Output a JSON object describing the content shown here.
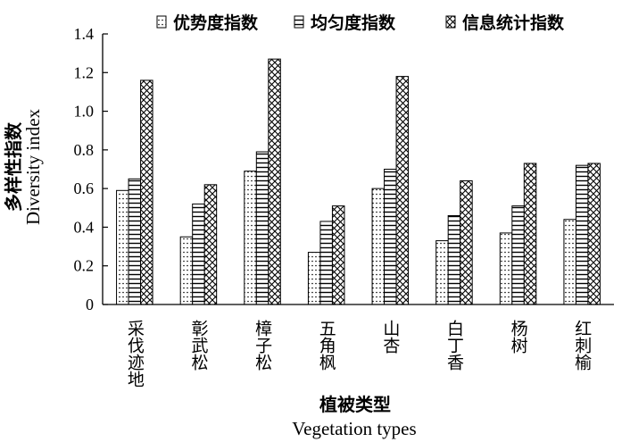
{
  "chart_data": {
    "type": "bar",
    "categories": [
      "采伐迹地",
      "彰武松",
      "樟子松",
      "五角枫",
      "山杏",
      "白丁香",
      "杨树",
      "红刺榆"
    ],
    "series": [
      {
        "name": "优势度指数",
        "pattern": "dots",
        "values": [
          0.59,
          0.35,
          0.69,
          0.27,
          0.6,
          0.33,
          0.37,
          0.44
        ]
      },
      {
        "name": "均匀度指数",
        "pattern": "horizontal-lines",
        "values": [
          0.65,
          0.52,
          0.79,
          0.43,
          0.7,
          0.46,
          0.51,
          0.72
        ]
      },
      {
        "name": "信息统计指数",
        "pattern": "crosshatch",
        "values": [
          1.16,
          0.62,
          1.27,
          0.51,
          1.18,
          0.64,
          0.73,
          0.73
        ]
      }
    ],
    "ylim": [
      0,
      1.4
    ],
    "yticks": [
      "0",
      "0.2",
      "0.4",
      "0.6",
      "0.8",
      "1.0",
      "1.2",
      "1.4"
    ],
    "ylabel_cn": "多样性指数",
    "ylabel_en": "Diversity index",
    "xlabel_cn": "植被类型",
    "xlabel_en": "Vegetation types",
    "legend_position": "top",
    "grid": false,
    "bar_color": "#000000",
    "background_color": "#ffffff"
  }
}
